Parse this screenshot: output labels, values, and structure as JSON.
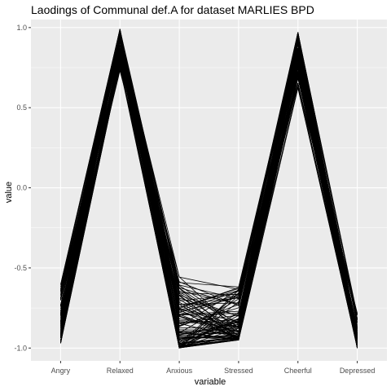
{
  "chart_data": {
    "type": "line",
    "title": "Laodings of Communal def.A for dataset MARLIES BPD",
    "xlabel": "variable",
    "ylabel": "value",
    "categories": [
      "Angry",
      "Relaxed",
      "Anxious",
      "Stressed",
      "Cheerful",
      "Depressed"
    ],
    "ylim": [
      -1.08,
      1.05
    ],
    "y_ticks": [
      1.0,
      0.5,
      0.0,
      -0.5,
      -1.0
    ],
    "y_tick_labels": [
      "1.0",
      "0.5",
      "0.0",
      "-0.5",
      "-1.0"
    ],
    "grid": true,
    "legend": "none",
    "panel_background": "#ebebeb",
    "grid_color": "#ffffff",
    "line_color": "#000000",
    "series_count": 100,
    "series_ranges": {
      "Angry": [
        -0.97,
        -0.6
      ],
      "Relaxed": [
        0.72,
        0.99
      ],
      "Anxious": [
        -1.0,
        -0.55
      ],
      "Stressed": [
        -0.95,
        -0.6
      ],
      "Cheerful": [
        0.62,
        0.97
      ],
      "Depressed": [
        -1.0,
        -0.78
      ]
    }
  }
}
